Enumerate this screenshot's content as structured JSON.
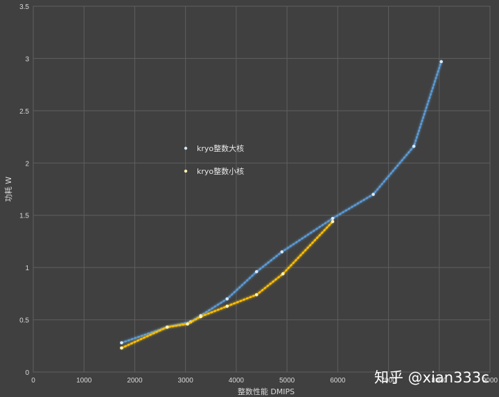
{
  "chart_data": {
    "type": "line",
    "xlabel": "整数性能 DMIPS",
    "ylabel": "功耗 W",
    "xlim": [
      0,
      9000
    ],
    "ylim": [
      0,
      3.5
    ],
    "x_ticks": [
      "0",
      "1000",
      "2000",
      "3000",
      "4000",
      "5000",
      "6000",
      "7000",
      "8000",
      "9000"
    ],
    "y_ticks": [
      "0",
      "0.5",
      "1",
      "1.5",
      "2",
      "2.5",
      "3",
      "3.5"
    ],
    "grid": true,
    "legend_position": "center-left",
    "series": [
      {
        "name": "kryo整数大核",
        "color": "#5b9bd5",
        "x": [
          1740,
          2640,
          3100,
          3300,
          3820,
          4400,
          4900,
          5900,
          6700,
          7500,
          8040
        ],
        "y": [
          0.28,
          0.43,
          0.48,
          0.54,
          0.7,
          0.96,
          1.15,
          1.47,
          1.7,
          2.16,
          2.97
        ]
      },
      {
        "name": "kryo整数小核",
        "color": "#ffc000",
        "x": [
          1740,
          2640,
          3040,
          3300,
          3820,
          4400,
          4920,
          5900
        ],
        "y": [
          0.23,
          0.43,
          0.46,
          0.53,
          0.63,
          0.74,
          0.94,
          1.44
        ]
      }
    ]
  },
  "watermark": "知乎 @xian333c"
}
